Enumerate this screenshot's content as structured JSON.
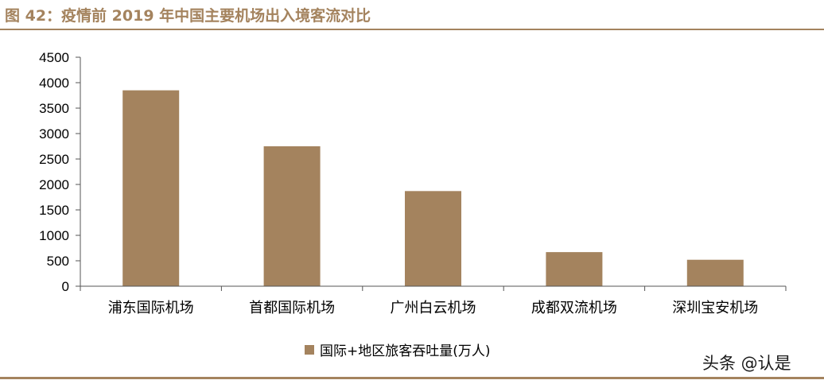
{
  "title": "图 42：疫情前 2019 年中国主要机场出入境客流对比",
  "watermark": "头条 @认是",
  "colors": {
    "accent": "#A4835E",
    "bar": "#A4835E",
    "axis": "#555555"
  },
  "chart_data": {
    "type": "bar",
    "categories": [
      "浦东国际机场",
      "首都国际机场",
      "广州白云机场",
      "成都双流机场",
      "深圳宝安机场"
    ],
    "series": [
      {
        "name": "国际+地区旅客吞吐量(万人)",
        "values": [
          3850,
          2750,
          1870,
          670,
          520
        ]
      }
    ],
    "yticks": [
      "0",
      "500",
      "1000",
      "1500",
      "2000",
      "2500",
      "3000",
      "3500",
      "4000",
      "4500"
    ],
    "ylim": [
      0,
      4500
    ],
    "grid": false,
    "legend_position": "bottom-center"
  }
}
